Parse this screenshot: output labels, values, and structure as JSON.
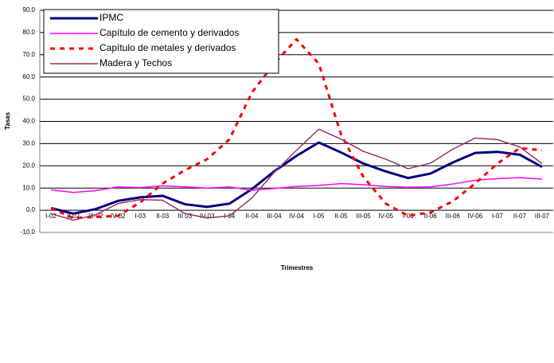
{
  "chart_data": {
    "type": "line",
    "x_label": "Trimestres",
    "y_label": "Tasas",
    "categories": [
      "I-02",
      "II-02",
      "III-02",
      "IV-02",
      "I-03",
      "II-03",
      "III 03",
      "IV-03",
      "I-04",
      "II-04",
      "III-04",
      "IV-04",
      "I-05",
      "II-05",
      "III-05",
      "IV-05",
      "I-06",
      "II-06",
      "III-06",
      "IV-06",
      "I-07",
      "II-07",
      "III-07"
    ],
    "series": [
      {
        "name": "IPMC",
        "color": "#000080",
        "values": [
          1.0,
          -1.5,
          0.5,
          4.2,
          5.8,
          6.5,
          2.7,
          1.5,
          3.0,
          9.5,
          17.5,
          24.5,
          30.5,
          26.0,
          21.0,
          17.5,
          14.5,
          16.5,
          21.5,
          25.8,
          26.3,
          25.0,
          19.5
        ]
      },
      {
        "name": "Capítulo de cemento y derivados",
        "color": "#ff00ff",
        "values": [
          9.2,
          8.0,
          8.8,
          10.5,
          10.2,
          11.0,
          10.5,
          10.0,
          10.5,
          9.0,
          9.8,
          10.7,
          11.2,
          12.0,
          11.5,
          10.7,
          10.4,
          10.5,
          11.8,
          13.5,
          14.2,
          14.7,
          14.0
        ]
      },
      {
        "name": "Capítulo de metales y derivados",
        "color": "#ff0000",
        "dashed": true,
        "values": [
          1.0,
          -3.5,
          -3.0,
          -2.5,
          3.5,
          12.0,
          18.0,
          23.0,
          32.0,
          53.0,
          66.0,
          77.0,
          66.0,
          34.0,
          15.0,
          3.0,
          -2.5,
          -1.0,
          4.0,
          12.0,
          21.0,
          28.0,
          27.0
        ]
      },
      {
        "name": "Madera y Techos",
        "color": "#993366",
        "values": [
          -1.5,
          -4.5,
          -2.0,
          3.0,
          4.8,
          4.5,
          -1.5,
          -3.5,
          -2.5,
          5.5,
          17.0,
          27.0,
          36.5,
          32.0,
          26.5,
          23.0,
          18.7,
          21.2,
          27.5,
          32.5,
          31.8,
          28.5,
          21.0
        ]
      }
    ],
    "ylim": [
      -10,
      90
    ],
    "yticks": [
      {
        "value": -10,
        "label": "-10.0"
      },
      {
        "value": 0,
        "label": "0.0"
      },
      {
        "value": 10,
        "label": "10.0"
      },
      {
        "value": 20,
        "label": "20.0"
      },
      {
        "value": 30,
        "label": "30.0"
      },
      {
        "value": 40,
        "label": "40.0"
      },
      {
        "value": 50,
        "label": "50.0"
      },
      {
        "value": 60,
        "label": "60.0"
      },
      {
        "value": 70,
        "label": "70.0"
      },
      {
        "value": 80,
        "label": "80.0"
      },
      {
        "value": 90,
        "label": "90.0"
      }
    ],
    "grid": true,
    "legend": "upper left"
  }
}
